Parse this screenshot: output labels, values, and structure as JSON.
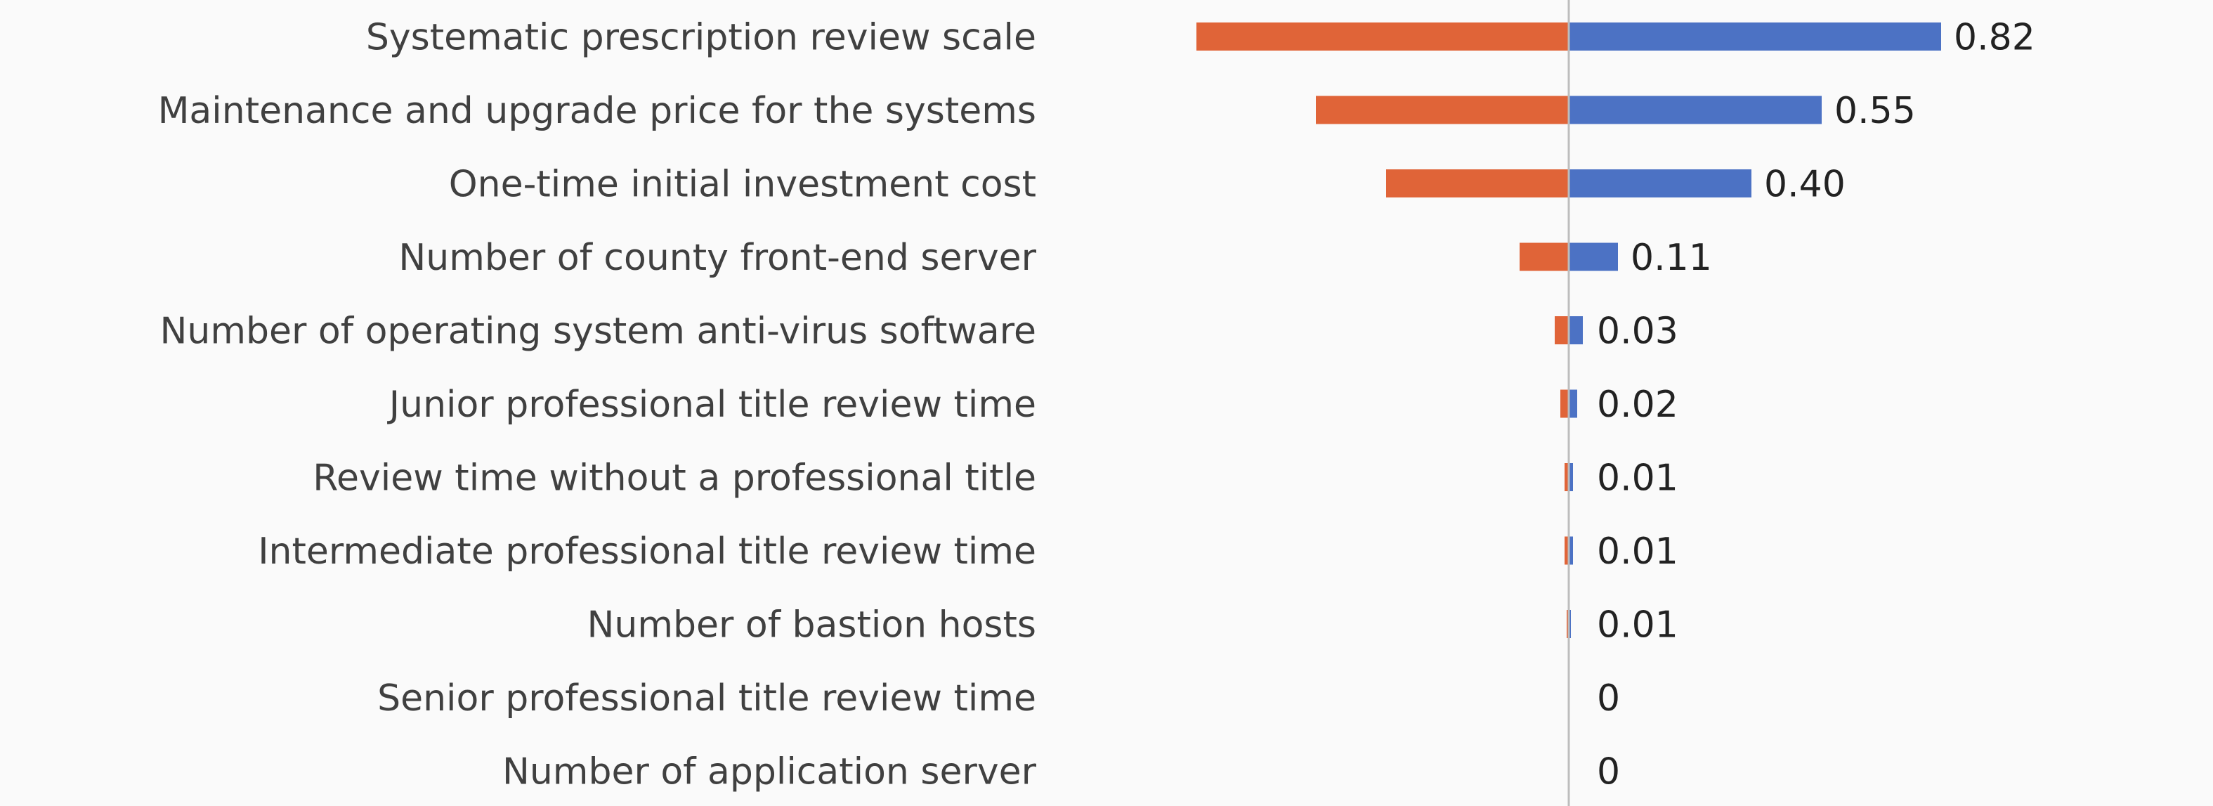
{
  "chart_data": {
    "type": "bar",
    "subtype": "tornado",
    "title": "",
    "xlabel": "",
    "ylabel": "",
    "grid": false,
    "legend": "none",
    "categories": [
      "Systematic prescription review scale",
      "Maintenance and upgrade price for the systems",
      "One-time initial investment cost",
      "Number of county front-end server",
      "Number of operating system anti-virus software",
      "Junior professional title review time",
      "Review time without a professional title",
      "Intermediate professional title review time",
      "Number of bastion hosts",
      "Senior professional title review time",
      "Number of application server"
    ],
    "series": [
      {
        "values": [
          -0.53,
          -0.36,
          -0.26,
          -0.07,
          -0.02,
          -0.012,
          -0.006,
          -0.006,
          -0.003,
          0,
          0
        ]
      },
      {
        "values": [
          0.53,
          0.36,
          0.26,
          0.07,
          0.02,
          0.012,
          0.006,
          0.006,
          0.003,
          0,
          0
        ]
      }
    ],
    "data_labels": [
      "0.82",
      "0.55",
      "0.40",
      "0.11",
      "0.03",
      "0.02",
      "0.01",
      "0.01",
      "0.01",
      "0",
      "0"
    ],
    "xlim": [
      -0.6,
      0.6
    ],
    "colors": {
      "low": "#E06438",
      "high": "#4C72C4",
      "axis": "#BDBDBD",
      "text": "#404040",
      "background": "#fafafa"
    }
  }
}
